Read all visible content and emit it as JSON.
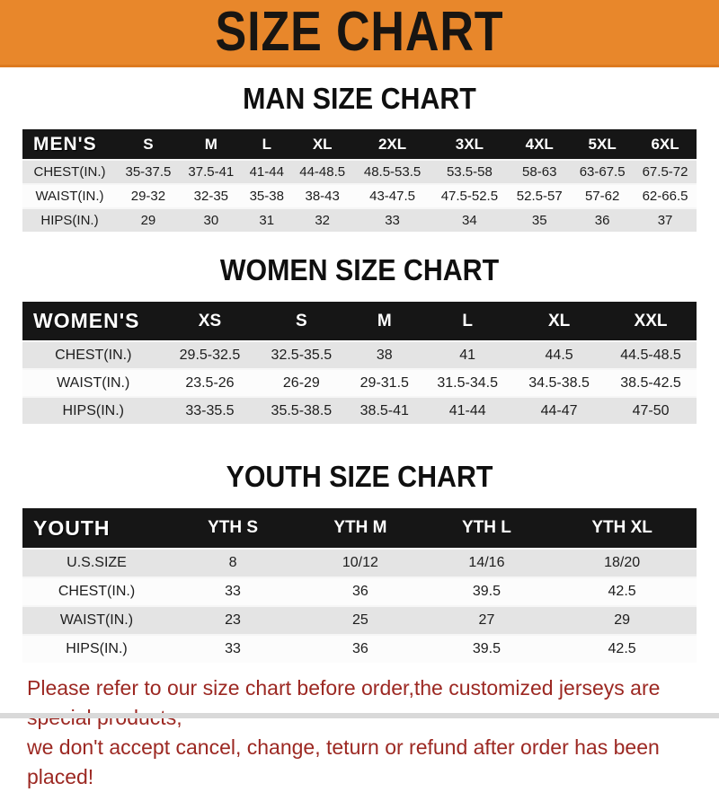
{
  "banner": {
    "title": "SIZE CHART"
  },
  "colors": {
    "banner_bg": "#e8872b",
    "header_band_bg": "#161616",
    "row_alt_bg": "#e4e4e4",
    "footer_text": "#9c2822"
  },
  "sections": [
    {
      "heading": "MAN SIZE CHART",
      "corner_label": "MEN'S",
      "columns": [
        "S",
        "M",
        "L",
        "XL",
        "2XL",
        "3XL",
        "4XL",
        "5XL",
        "6XL"
      ],
      "rows": [
        {
          "label": "CHEST(IN.)",
          "values": [
            "35-37.5",
            "37.5-41",
            "41-44",
            "44-48.5",
            "48.5-53.5",
            "53.5-58",
            "58-63",
            "63-67.5",
            "67.5-72"
          ]
        },
        {
          "label": "WAIST(IN.)",
          "values": [
            "29-32",
            "32-35",
            "35-38",
            "38-43",
            "43-47.5",
            "47.5-52.5",
            "52.5-57",
            "57-62",
            "62-66.5"
          ]
        },
        {
          "label": "HIPS(IN.)",
          "values": [
            "29",
            "30",
            "31",
            "32",
            "33",
            "34",
            "35",
            "36",
            "37"
          ]
        }
      ]
    },
    {
      "heading": "WOMEN SIZE CHART",
      "corner_label": "WOMEN'S",
      "columns": [
        "XS",
        "S",
        "M",
        "L",
        "XL",
        "XXL"
      ],
      "rows": [
        {
          "label": "CHEST(IN.)",
          "values": [
            "29.5-32.5",
            "32.5-35.5",
            "38",
            "41",
            "44.5",
            "44.5-48.5"
          ]
        },
        {
          "label": "WAIST(IN.)",
          "values": [
            "23.5-26",
            "26-29",
            "29-31.5",
            "31.5-34.5",
            "34.5-38.5",
            "38.5-42.5"
          ]
        },
        {
          "label": "HIPS(IN.)",
          "values": [
            "33-35.5",
            "35.5-38.5",
            "38.5-41",
            "41-44",
            "44-47",
            "47-50"
          ]
        }
      ]
    },
    {
      "heading": "YOUTH SIZE CHART",
      "corner_label": "YOUTH",
      "columns": [
        "YTH S",
        "YTH M",
        "YTH L",
        "YTH XL"
      ],
      "rows": [
        {
          "label": "U.S.SIZE",
          "values": [
            "8",
            "10/12",
            "14/16",
            "18/20"
          ]
        },
        {
          "label": "CHEST(IN.)",
          "values": [
            "33",
            "36",
            "39.5",
            "42.5"
          ]
        },
        {
          "label": "WAIST(IN.)",
          "values": [
            "23",
            "25",
            "27",
            "29"
          ]
        },
        {
          "label": "HIPS(IN.)",
          "values": [
            "33",
            "36",
            "39.5",
            "42.5"
          ]
        }
      ]
    }
  ],
  "footer": {
    "line1": "Please refer to our size chart before order,the customized jerseys are special products,",
    "line2": "we don't accept cancel, change, teturn or refund after order has been placed!"
  }
}
